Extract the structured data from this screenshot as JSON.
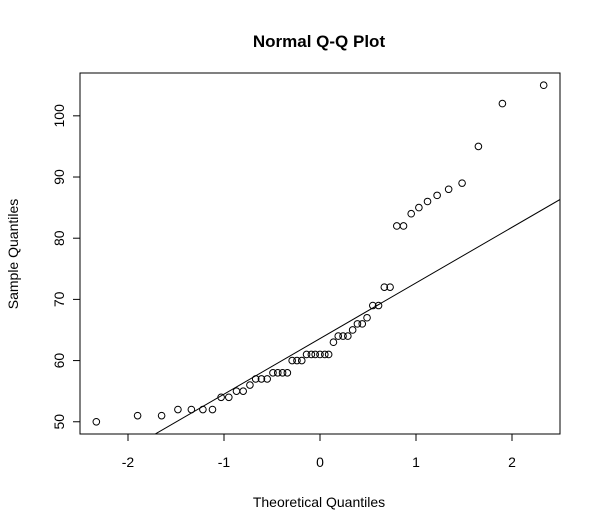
{
  "chart_data": {
    "type": "scatter",
    "title": "Normal Q-Q Plot",
    "xlabel": "Theoretical Quantiles",
    "ylabel": "Sample Quantiles",
    "xlim": [
      -2.5,
      2.5
    ],
    "ylim": [
      48,
      107
    ],
    "x_ticks": [
      -2,
      -1,
      0,
      1,
      2
    ],
    "x_tick_labels": [
      "-2",
      "-1",
      "0",
      "1",
      "2"
    ],
    "y_ticks": [
      50,
      60,
      70,
      80,
      90,
      100
    ],
    "y_tick_labels": [
      "50",
      "60",
      "70",
      "80",
      "90",
      "100"
    ],
    "grid": false,
    "reference_line": {
      "slope": 9.09,
      "intercept": 63.6
    },
    "points": [
      {
        "x": -2.33,
        "y": 50
      },
      {
        "x": -1.9,
        "y": 51
      },
      {
        "x": -1.65,
        "y": 51
      },
      {
        "x": -1.48,
        "y": 52
      },
      {
        "x": -1.34,
        "y": 52
      },
      {
        "x": -1.22,
        "y": 52
      },
      {
        "x": -1.12,
        "y": 52
      },
      {
        "x": -1.03,
        "y": 54
      },
      {
        "x": -0.95,
        "y": 54
      },
      {
        "x": -0.87,
        "y": 55
      },
      {
        "x": -0.8,
        "y": 55
      },
      {
        "x": -0.73,
        "y": 56
      },
      {
        "x": -0.67,
        "y": 57
      },
      {
        "x": -0.61,
        "y": 57
      },
      {
        "x": -0.55,
        "y": 57
      },
      {
        "x": -0.49,
        "y": 58
      },
      {
        "x": -0.44,
        "y": 58
      },
      {
        "x": -0.39,
        "y": 58
      },
      {
        "x": -0.34,
        "y": 58
      },
      {
        "x": -0.29,
        "y": 60
      },
      {
        "x": -0.24,
        "y": 60
      },
      {
        "x": -0.19,
        "y": 60
      },
      {
        "x": -0.14,
        "y": 61
      },
      {
        "x": -0.09,
        "y": 61
      },
      {
        "x": -0.05,
        "y": 61
      },
      {
        "x": 0.0,
        "y": 61
      },
      {
        "x": 0.05,
        "y": 61
      },
      {
        "x": 0.09,
        "y": 61
      },
      {
        "x": 0.14,
        "y": 63
      },
      {
        "x": 0.19,
        "y": 64
      },
      {
        "x": 0.24,
        "y": 64
      },
      {
        "x": 0.29,
        "y": 64
      },
      {
        "x": 0.34,
        "y": 65
      },
      {
        "x": 0.39,
        "y": 66
      },
      {
        "x": 0.44,
        "y": 66
      },
      {
        "x": 0.49,
        "y": 67
      },
      {
        "x": 0.55,
        "y": 69
      },
      {
        "x": 0.61,
        "y": 69
      },
      {
        "x": 0.67,
        "y": 72
      },
      {
        "x": 0.73,
        "y": 72
      },
      {
        "x": 0.8,
        "y": 82
      },
      {
        "x": 0.87,
        "y": 82
      },
      {
        "x": 0.95,
        "y": 84
      },
      {
        "x": 1.03,
        "y": 85
      },
      {
        "x": 1.12,
        "y": 86
      },
      {
        "x": 1.22,
        "y": 87
      },
      {
        "x": 1.34,
        "y": 88
      },
      {
        "x": 1.48,
        "y": 89
      },
      {
        "x": 1.65,
        "y": 95
      },
      {
        "x": 1.9,
        "y": 102
      },
      {
        "x": 2.33,
        "y": 105
      }
    ]
  }
}
